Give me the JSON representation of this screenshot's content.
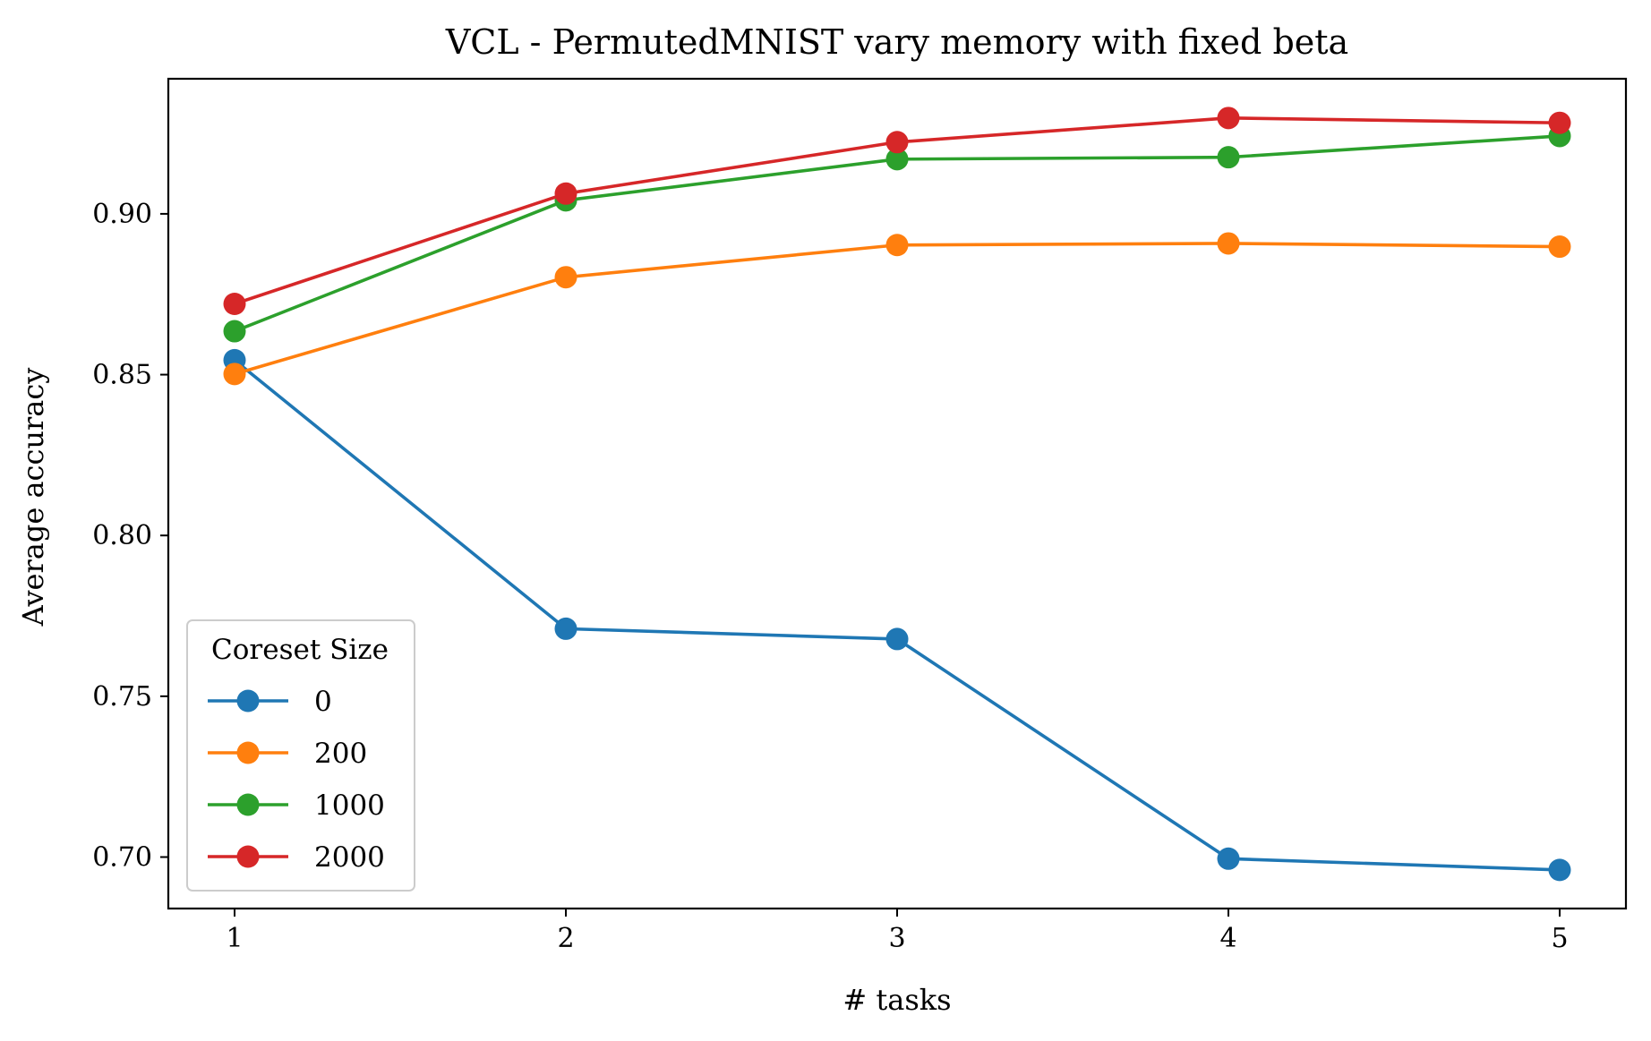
{
  "chart_data": {
    "type": "line",
    "title": "VCL - PermutedMNIST vary memory with fixed beta",
    "xlabel": "# tasks",
    "ylabel": "Average accuracy",
    "x": [
      1,
      2,
      3,
      4,
      5
    ],
    "x_ticks": [
      "1",
      "2",
      "3",
      "4",
      "5"
    ],
    "y_ticks": [
      "0.70",
      "0.75",
      "0.80",
      "0.85",
      "0.90"
    ],
    "xlim": [
      0.8,
      5.2
    ],
    "ylim": [
      0.684,
      0.942
    ],
    "grid": false,
    "legend": {
      "title": "Coreset Size",
      "placement": "lower-left"
    },
    "series": [
      {
        "name": "0",
        "color": "#1f77b4",
        "values": [
          0.8545,
          0.771,
          0.7678,
          0.6995,
          0.696
        ]
      },
      {
        "name": "200",
        "color": "#ff7f0e",
        "values": [
          0.8502,
          0.8803,
          0.8903,
          0.8908,
          0.8898
        ]
      },
      {
        "name": "1000",
        "color": "#2ca02c",
        "values": [
          0.8635,
          0.9042,
          0.917,
          0.9176,
          0.9242
        ]
      },
      {
        "name": "2000",
        "color": "#d62728",
        "values": [
          0.872,
          0.9063,
          0.9223,
          0.9298,
          0.9283
        ]
      }
    ]
  }
}
